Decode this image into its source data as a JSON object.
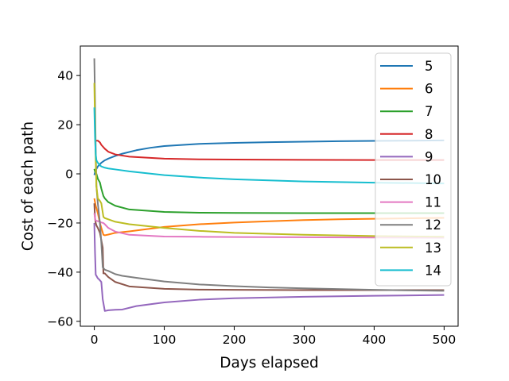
{
  "chart_data": {
    "type": "line",
    "title": "",
    "xlabel": "Days elapsed",
    "ylabel": "Cost of each path",
    "xlim": [
      -20,
      520
    ],
    "ylim": [
      -62,
      52
    ],
    "xticks": [
      0,
      100,
      200,
      300,
      400,
      500
    ],
    "yticks": [
      -60,
      -40,
      -20,
      0,
      20,
      40
    ],
    "xtick_labels": [
      "0",
      "100",
      "200",
      "300",
      "400",
      "500"
    ],
    "ytick_labels": [
      "−60",
      "−40",
      "−20",
      "0",
      "20",
      "40"
    ],
    "grid": false,
    "legend_position": "top-right",
    "series": [
      {
        "name": "5",
        "color": "#1f77b4",
        "x": [
          0,
          2,
          5,
          10,
          15,
          20,
          30,
          40,
          60,
          80,
          100,
          150,
          200,
          250,
          300,
          350,
          400,
          450,
          500
        ],
        "y": [
          -0.5,
          1.5,
          3.0,
          4.5,
          5.5,
          6.2,
          7.3,
          8.2,
          9.6,
          10.6,
          11.3,
          12.2,
          12.6,
          12.9,
          13.1,
          13.3,
          13.4,
          13.5,
          13.6
        ]
      },
      {
        "name": "6",
        "color": "#ff7f0e",
        "x": [
          0,
          2,
          5,
          8,
          10,
          13,
          15,
          20,
          30,
          50,
          100,
          150,
          200,
          250,
          300,
          350,
          400,
          450,
          500
        ],
        "y": [
          -10,
          -13,
          -16,
          -20,
          -22,
          -24.8,
          -25.0,
          -24.7,
          -24.0,
          -23.4,
          -21.6,
          -20.5,
          -19.8,
          -19.3,
          -18.8,
          -18.5,
          -18.3,
          -18.1,
          -17.9
        ]
      },
      {
        "name": "7",
        "color": "#2ca02c",
        "x": [
          0,
          1,
          3,
          5,
          8,
          10,
          13,
          15,
          20,
          30,
          50,
          100,
          150,
          200,
          300,
          400,
          500
        ],
        "y": [
          2,
          1,
          0,
          -2,
          -3.5,
          -6,
          -9,
          -10,
          -11.5,
          -13,
          -14.5,
          -15.5,
          -15.8,
          -15.9,
          -16.0,
          -16.0,
          -16.0
        ]
      },
      {
        "name": "8",
        "color": "#d62728",
        "x": [
          2,
          5,
          8,
          10,
          15,
          20,
          30,
          50,
          100,
          150,
          200,
          300,
          400,
          500
        ],
        "y": [
          13.5,
          13.5,
          12.8,
          11.8,
          10.2,
          9.0,
          7.9,
          7.0,
          6.2,
          5.9,
          5.8,
          5.7,
          5.6,
          5.6
        ]
      },
      {
        "name": "9",
        "color": "#9467bd",
        "x": [
          0,
          1,
          2,
          3,
          5,
          7,
          10,
          12,
          15,
          20,
          30,
          40,
          60,
          100,
          150,
          200,
          300,
          400,
          500
        ],
        "y": [
          -20,
          -32,
          -41,
          -41.5,
          -42.5,
          -43,
          -44,
          -51,
          -55.8,
          -55.5,
          -55.3,
          -55.2,
          -53.8,
          -52.3,
          -51.2,
          -50.6,
          -50.0,
          -49.6,
          -49.3
        ]
      },
      {
        "name": "10",
        "color": "#8c564b",
        "x": [
          0,
          1,
          2,
          3,
          5,
          8,
          10,
          12,
          13,
          15,
          20,
          30,
          50,
          100,
          150,
          200,
          300,
          400,
          500
        ],
        "y": [
          -12,
          -18,
          -20,
          -21,
          -22,
          -24,
          -27,
          -30,
          -40.5,
          -40.5,
          -42.0,
          -44.0,
          -45.8,
          -46.8,
          -47.1,
          -47.2,
          -47.3,
          -47.3,
          -47.3
        ]
      },
      {
        "name": "11",
        "color": "#e377c2",
        "x": [
          0,
          1,
          2,
          4,
          6,
          8,
          10,
          13,
          15,
          20,
          30,
          50,
          100,
          150,
          200,
          300,
          400,
          500
        ],
        "y": [
          -16,
          -18,
          -19.0,
          -19.2,
          -19.3,
          -19.5,
          -19.8,
          -20,
          -20.5,
          -22,
          -23.5,
          -24.8,
          -25.5,
          -25.6,
          -25.7,
          -25.8,
          -25.9,
          -26.0
        ]
      },
      {
        "name": "12",
        "color": "#7f7f7f",
        "x": [
          0,
          1,
          2,
          3,
          5,
          8,
          10,
          12,
          15,
          20,
          30,
          40,
          60,
          100,
          150,
          200,
          250,
          300,
          400,
          500
        ],
        "y": [
          47,
          30,
          10,
          -5,
          -12,
          -20,
          -28,
          -38,
          -39,
          -39.5,
          -40.8,
          -41.5,
          -42.3,
          -43.8,
          -45.0,
          -45.7,
          -46.2,
          -46.6,
          -47.2,
          -47.6
        ]
      },
      {
        "name": "13",
        "color": "#bcbd22",
        "x": [
          0,
          1,
          2,
          3,
          5,
          8,
          10,
          13,
          15,
          20,
          30,
          50,
          100,
          150,
          200,
          300,
          400,
          500
        ],
        "y": [
          37,
          20,
          5,
          -5,
          -10,
          -11,
          -12,
          -17.5,
          -18,
          -18.5,
          -19.5,
          -20.5,
          -22.0,
          -23.2,
          -24.0,
          -24.8,
          -25.3,
          -25.6
        ]
      },
      {
        "name": "14",
        "color": "#17becf",
        "x": [
          0,
          1,
          2,
          3,
          5,
          8,
          10,
          15,
          20,
          30,
          50,
          100,
          150,
          200,
          300,
          400,
          500
        ],
        "y": [
          27,
          15,
          8,
          5.5,
          4.5,
          3.5,
          3.0,
          2.5,
          2.2,
          1.8,
          1.0,
          -0.5,
          -1.5,
          -2.2,
          -3.1,
          -3.6,
          -3.9
        ]
      }
    ]
  }
}
